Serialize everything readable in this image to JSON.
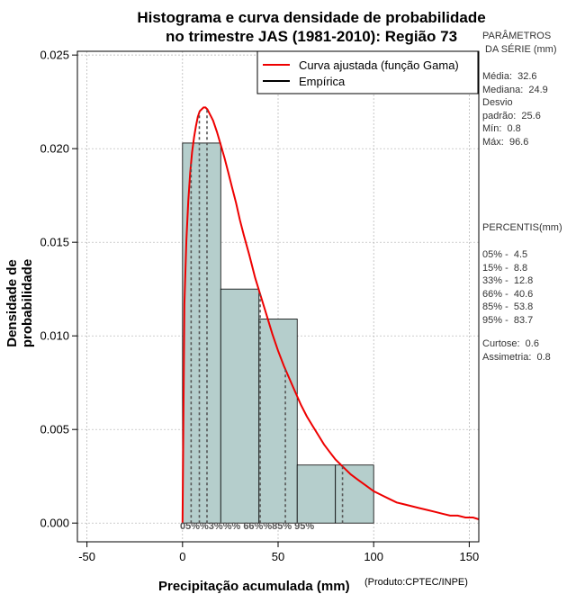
{
  "chart_data": {
    "type": "histogram",
    "title": [
      "Histograma e curva densidade de probabilidade",
      "no trimestre JAS (1981-2010): Região 73"
    ],
    "xlabel": "Precipitação acumulada (mm)",
    "ylabel": "Densidade de probabilidade",
    "xlim": [
      -55,
      155
    ],
    "ylim": [
      -0.001,
      0.0252
    ],
    "x_ticks": [
      -50,
      0,
      50,
      100,
      150
    ],
    "x_tick_labels": [
      "-50",
      "0",
      "50",
      "100",
      "150"
    ],
    "y_ticks": [
      0,
      0.005,
      0.01,
      0.015,
      0.02,
      0.025
    ],
    "y_tick_labels": [
      "0.000",
      "0.005",
      "0.010",
      "0.015",
      "0.020",
      "0.025"
    ],
    "grid": true,
    "bins": [
      {
        "from": 0,
        "to": 20,
        "density": 0.0203
      },
      {
        "from": 20,
        "to": 40,
        "density": 0.0125
      },
      {
        "from": 40,
        "to": 60,
        "density": 0.0109
      },
      {
        "from": 60,
        "to": 80,
        "density": 0.0031
      },
      {
        "from": 80,
        "to": 100,
        "density": 0.0031
      }
    ],
    "gamma_curve": {
      "x": [
        0,
        1,
        2,
        3,
        4,
        5,
        6,
        7,
        8,
        9,
        10,
        11,
        12,
        13,
        14,
        15,
        16,
        18,
        20,
        22,
        24,
        26,
        28,
        30,
        32,
        35,
        38,
        41,
        44,
        47,
        50,
        53,
        56,
        59,
        62,
        65,
        68,
        71,
        74,
        77,
        80,
        84,
        88,
        92,
        96,
        100,
        104,
        108,
        112,
        116,
        120,
        124,
        128,
        132,
        136,
        140,
        144,
        148,
        152,
        155
      ],
      "y": [
        0.0,
        0.0117,
        0.0151,
        0.0172,
        0.0187,
        0.0198,
        0.0206,
        0.0212,
        0.0217,
        0.022,
        0.0221,
        0.0222,
        0.0222,
        0.0221,
        0.0219,
        0.0217,
        0.0215,
        0.0209,
        0.0202,
        0.0195,
        0.0187,
        0.0179,
        0.0171,
        0.0162,
        0.0154,
        0.0143,
        0.0131,
        0.0121,
        0.0111,
        0.0101,
        0.0092,
        0.0084,
        0.0077,
        0.007,
        0.0063,
        0.0057,
        0.0052,
        0.0047,
        0.0042,
        0.0038,
        0.0034,
        0.003,
        0.0026,
        0.0023,
        0.002,
        0.0017,
        0.0015,
        0.0013,
        0.0011,
        0.001,
        0.0009,
        0.0008,
        0.0007,
        0.0006,
        0.0005,
        0.0004,
        0.0004,
        0.0003,
        0.0003,
        0.0002
      ]
    },
    "percentile_markers": [
      {
        "label": "05%",
        "x": 4.5
      },
      {
        "label": "15%",
        "x": 8.8
      },
      {
        "label": "33%",
        "x": 12.8
      },
      {
        "label": "66%",
        "x": 40.6
      },
      {
        "label": "85%",
        "x": 53.8
      },
      {
        "label": "95%",
        "x": 83.7
      }
    ],
    "percentile_marker_text": "05%%3%%%   66%%85%        95%",
    "legend": [
      {
        "label": "Curva ajustada (função Gama)",
        "color": "#ee0000"
      },
      {
        "label": "Empírica",
        "color": "#000000"
      }
    ],
    "legend_position": "top-right"
  },
  "side_panel": {
    "params_title": "PARÂMETROS\n DA SÉRIE (mm)",
    "params": "Média:  32.6\nMediana:  24.9\nDesvio\npadrão:  25.6\nMín:  0.8\nMáx:  96.6",
    "percentis_title": "PERCENTIS(mm)",
    "percentis": "05% -  4.5\n15% -  8.8\n33% -  12.8\n66% -  40.6\n85% -  53.8\n95% -  83.7",
    "stats": "Curtose:  0.6\nAssimetria:  0.8"
  },
  "credit": "(Produto:CPTEC/INPE)",
  "colors": {
    "bar_fill": "#b5cecc",
    "curve": "#ee0000",
    "grid": "#b0b0b0"
  }
}
